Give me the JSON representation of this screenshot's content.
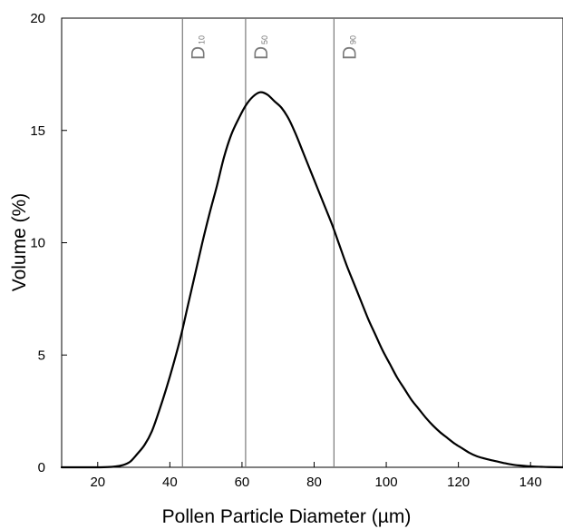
{
  "chart_data": {
    "type": "line",
    "xlabel": "Pollen Particle Diameter (µm)",
    "ylabel": "Volume (%)",
    "xlim": [
      10,
      149
    ],
    "ylim": [
      0,
      20
    ],
    "x_ticks": [
      "20",
      "40",
      "60",
      "80",
      "100",
      "120",
      "140"
    ],
    "y_ticks": [
      "0",
      "5",
      "10",
      "15",
      "20"
    ],
    "grid": false,
    "series": [
      {
        "color": "#000000",
        "x": [
          10,
          15,
          20,
          24,
          27,
          29,
          31,
          33,
          35,
          37,
          39,
          41,
          43,
          45,
          47,
          49,
          51,
          53,
          55,
          57,
          59,
          61,
          63,
          65,
          67,
          69,
          71,
          73,
          75,
          77,
          79,
          81,
          83,
          85,
          87,
          89,
          91,
          93,
          95,
          97,
          99,
          101,
          103,
          105,
          107,
          109,
          111,
          113,
          115,
          117,
          119,
          121,
          123,
          125,
          127,
          129,
          131,
          133,
          135,
          137,
          139,
          141,
          143,
          145,
          149
        ],
        "y": [
          0,
          0,
          0,
          0.02,
          0.1,
          0.25,
          0.6,
          1.0,
          1.6,
          2.5,
          3.5,
          4.6,
          5.8,
          7.2,
          8.6,
          10.0,
          11.3,
          12.5,
          13.8,
          14.8,
          15.5,
          16.1,
          16.5,
          16.7,
          16.6,
          16.3,
          16.0,
          15.5,
          14.8,
          14.0,
          13.2,
          12.4,
          11.6,
          10.8,
          9.9,
          9.0,
          8.2,
          7.4,
          6.6,
          5.9,
          5.2,
          4.6,
          4.0,
          3.5,
          3.0,
          2.6,
          2.2,
          1.85,
          1.55,
          1.3,
          1.05,
          0.85,
          0.65,
          0.5,
          0.4,
          0.32,
          0.25,
          0.18,
          0.12,
          0.08,
          0.05,
          0.03,
          0.02,
          0.01,
          0
        ]
      }
    ],
    "reference_lines": [
      {
        "x": 43.5,
        "label": "D",
        "subscript": "10",
        "color": "#7a7a7a"
      },
      {
        "x": 61,
        "label": "D",
        "subscript": "50",
        "color": "#7a7a7a"
      },
      {
        "x": 85.5,
        "label": "D",
        "subscript": "90",
        "color": "#7a7a7a"
      }
    ]
  }
}
